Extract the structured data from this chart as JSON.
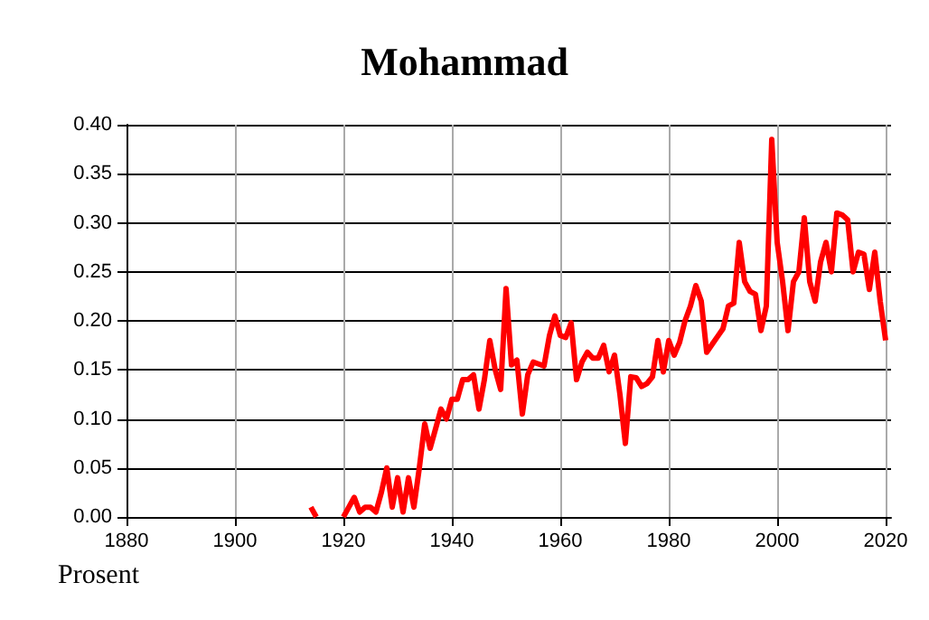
{
  "chart_data": {
    "type": "line",
    "title": "Mohammad",
    "ylabel": "Prosent",
    "x": [
      1914,
      1915,
      1916,
      1917,
      1918,
      1919,
      1920,
      1921,
      1922,
      1923,
      1924,
      1925,
      1926,
      1927,
      1928,
      1929,
      1930,
      1931,
      1932,
      1933,
      1934,
      1935,
      1936,
      1937,
      1938,
      1939,
      1940,
      1941,
      1942,
      1943,
      1944,
      1945,
      1946,
      1947,
      1948,
      1949,
      1950,
      1951,
      1952,
      1953,
      1954,
      1955,
      1956,
      1957,
      1958,
      1959,
      1960,
      1961,
      1962,
      1963,
      1964,
      1965,
      1966,
      1967,
      1968,
      1969,
      1970,
      1971,
      1972,
      1973,
      1974,
      1975,
      1976,
      1977,
      1978,
      1979,
      1980,
      1981,
      1982,
      1983,
      1984,
      1985,
      1986,
      1987,
      1988,
      1989,
      1990,
      1991,
      1992,
      1993,
      1994,
      1995,
      1996,
      1997,
      1998,
      1999,
      2000,
      2001,
      2002,
      2003,
      2004,
      2005,
      2006,
      2007,
      2008,
      2009,
      2010,
      2011,
      2012,
      2013,
      2014,
      2015,
      2016,
      2017,
      2018,
      2019,
      2020
    ],
    "series": [
      {
        "color": "#ff0000",
        "values": [
          0.01,
          0.0,
          null,
          null,
          null,
          null,
          0.0,
          0.01,
          0.02,
          0.005,
          0.01,
          0.01,
          0.005,
          0.025,
          0.05,
          0.01,
          0.04,
          0.005,
          0.04,
          0.01,
          0.05,
          0.095,
          0.07,
          0.09,
          0.11,
          0.1,
          0.12,
          0.12,
          0.14,
          0.14,
          0.145,
          0.11,
          0.14,
          0.18,
          0.15,
          0.13,
          0.233,
          0.155,
          0.16,
          0.105,
          0.145,
          0.158,
          0.156,
          0.154,
          0.185,
          0.205,
          0.185,
          0.183,
          0.198,
          0.14,
          0.158,
          0.168,
          0.162,
          0.162,
          0.175,
          0.148,
          0.165,
          0.125,
          0.075,
          0.143,
          0.142,
          0.133,
          0.136,
          0.143,
          0.18,
          0.148,
          0.18,
          0.165,
          0.178,
          0.2,
          0.215,
          0.236,
          0.22,
          0.168,
          0.176,
          0.184,
          0.192,
          0.215,
          0.218,
          0.28,
          0.24,
          0.23,
          0.227,
          0.19,
          0.215,
          0.385,
          0.28,
          0.24,
          0.19,
          0.24,
          0.25,
          0.305,
          0.24,
          0.22,
          0.26,
          0.28,
          0.25,
          0.31,
          0.308,
          0.303,
          0.25,
          0.27,
          0.268,
          0.232,
          0.27,
          0.22,
          0.18
        ]
      }
    ],
    "xlim": [
      1880,
      2021
    ],
    "xticks": [
      1880,
      1900,
      1920,
      1940,
      1960,
      1980,
      2000,
      2020
    ],
    "ylim": [
      0,
      0.4
    ],
    "yticks": [
      {
        "value": 0,
        "label": "0.00"
      },
      {
        "value": 0.05,
        "label": "0.05"
      },
      {
        "value": 0.1,
        "label": "0.10"
      },
      {
        "value": 0.15,
        "label": "0.15"
      },
      {
        "value": 0.2,
        "label": "0.20"
      },
      {
        "value": 0.25,
        "label": "0.25"
      },
      {
        "value": 0.3,
        "label": "0.30"
      },
      {
        "value": 0.35,
        "label": "0.35"
      },
      {
        "value": 0.4,
        "label": "0.40"
      }
    ],
    "grid": true,
    "marker": "none",
    "line_style": "solid"
  }
}
